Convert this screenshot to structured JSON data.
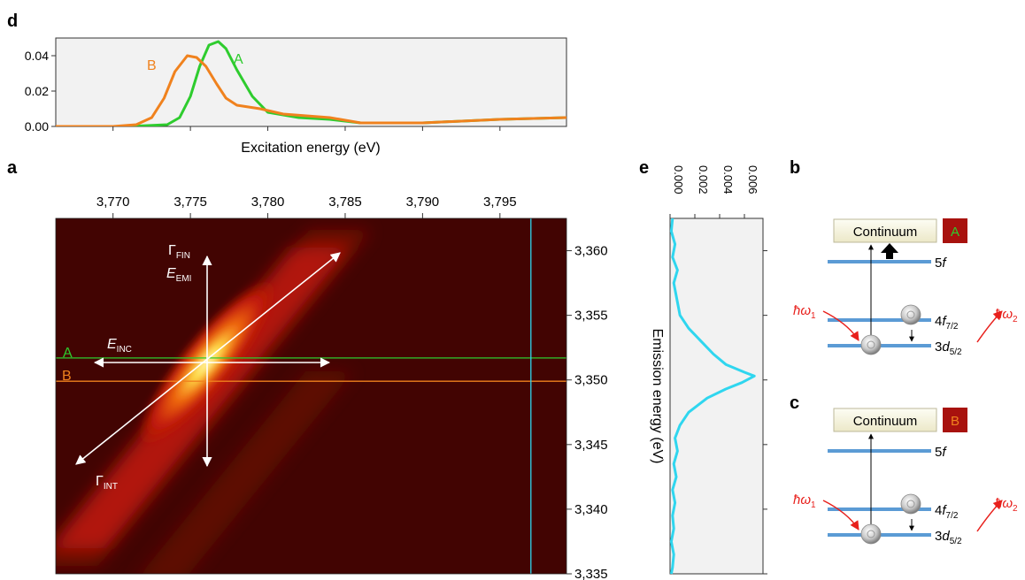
{
  "panels": {
    "a": "a",
    "b": "b",
    "c": "c",
    "d": "d",
    "e": "e"
  },
  "colors": {
    "green": "#2ecc2e",
    "orange": "#f0821e",
    "cyan": "#2fd6ef",
    "red": "#e8201c",
    "level": "#5b9bd5",
    "badge": "#a8120e",
    "bg_plot": "#f2f2f2"
  },
  "chart_data": [
    {
      "id": "d",
      "type": "line",
      "title": "",
      "xlabel": "Excitation energy (eV)",
      "ylabel": "",
      "xlim": [
        3766.3,
        3799.3
      ],
      "ylim": [
        0,
        0.05
      ],
      "yticks": [
        "0.00",
        "0.02",
        "0.04"
      ],
      "ytick_values": [
        0,
        0.02,
        0.04
      ],
      "series": [
        {
          "name": "A",
          "color": "#2ecc2e",
          "x": [
            3766.3,
            3771,
            3773.5,
            3774.3,
            3775,
            3775.6,
            3776.2,
            3776.8,
            3777.3,
            3778,
            3779,
            3780,
            3782,
            3784,
            3786,
            3790,
            3795,
            3799.3
          ],
          "y": [
            0,
            0,
            0.001,
            0.005,
            0.017,
            0.034,
            0.046,
            0.048,
            0.044,
            0.032,
            0.017,
            0.008,
            0.005,
            0.004,
            0.002,
            0.002,
            0.004,
            0.005
          ]
        },
        {
          "name": "B",
          "color": "#f0821e",
          "x": [
            3766.3,
            3770,
            3771.5,
            3772.5,
            3773.3,
            3774,
            3774.8,
            3775.4,
            3776,
            3776.7,
            3777.3,
            3778,
            3779.5,
            3781,
            3784,
            3786,
            3790,
            3795,
            3799.3
          ],
          "y": [
            0,
            0,
            0.001,
            0.005,
            0.016,
            0.031,
            0.04,
            0.039,
            0.034,
            0.024,
            0.016,
            0.012,
            0.01,
            0.007,
            0.005,
            0.002,
            0.002,
            0.004,
            0.005
          ]
        }
      ]
    },
    {
      "id": "a",
      "type": "heatmap",
      "xlabel": "",
      "ylabel": "Emission energy (eV)",
      "xlim": [
        3766.3,
        3799.3
      ],
      "ylim": [
        3335,
        3362.5
      ],
      "xticks": [
        "3,770",
        "3,775",
        "3,780",
        "3,785",
        "3,790",
        "3,795"
      ],
      "xtick_values": [
        3770,
        3775,
        3780,
        3785,
        3790,
        3795
      ],
      "yticks": [
        "3,360",
        "3,355",
        "3,350",
        "3,345",
        "3,340",
        "3,335"
      ],
      "ytick_values": [
        3360,
        3355,
        3350,
        3345,
        3340,
        3335
      ],
      "lines": [
        {
          "label": "A",
          "axis": "y",
          "value": 3351.7,
          "color": "#2ecc2e"
        },
        {
          "label": "B",
          "axis": "y",
          "value": 3349.9,
          "color": "#f0821e"
        },
        {
          "label": "",
          "axis": "x",
          "value": 3797,
          "color": "#2fd6ef"
        }
      ],
      "annotations": {
        "gamma_fin": "Γ",
        "gamma_fin_sub": "FIN",
        "e_emi": "E",
        "e_emi_sub": "EMI",
        "e_inc": "E",
        "e_inc_sub": "INC",
        "gamma_int": "Γ",
        "gamma_int_sub": "INT"
      }
    },
    {
      "id": "e",
      "type": "line",
      "xlabel": "",
      "ylabel": "Emission energy (eV)",
      "xlim": [
        0,
        0.0075
      ],
      "ylim": [
        3335,
        3362.5
      ],
      "xticks": [
        "0.000",
        "0.002",
        "0.004",
        "0.006"
      ],
      "xtick_values": [
        0,
        0.002,
        0.004,
        0.006
      ],
      "series": [
        {
          "name": "",
          "color": "#2fd6ef",
          "x": [
            0.0002,
            0.0001,
            0.0004,
            0.0002,
            0.0006,
            0.0003,
            0.0005,
            0.0008,
            0.0015,
            0.0025,
            0.0035,
            0.0045,
            0.006,
            0.0068,
            0.0058,
            0.0045,
            0.003,
            0.0015,
            0.0008,
            0.0004,
            0.0006,
            0.0003,
            0.0005,
            0.0002,
            0.0004,
            0.0002,
            0.0003,
            0.0001,
            0.0003,
            0.0002,
            0.0001
          ],
          "y": [
            3362.5,
            3361.5,
            3360.5,
            3359.5,
            3358.5,
            3357.5,
            3356.5,
            3355,
            3354,
            3353,
            3352,
            3351.2,
            3350.6,
            3350.3,
            3349.8,
            3349.3,
            3348.6,
            3347.5,
            3346.5,
            3345.5,
            3344.5,
            3343.5,
            3342.5,
            3341.5,
            3340.5,
            3339.5,
            3338.5,
            3337.5,
            3336.5,
            3335.5,
            3335
          ]
        }
      ]
    }
  ],
  "level_diagrams": [
    {
      "id": "b",
      "continuum": "Continuum",
      "badge": "A",
      "badge_color": "#2ecc2e",
      "level_5f": "5",
      "level_5f_it": "f",
      "level_4f": "4",
      "level_4f_it": "f",
      "level_4f_sub": "7/2",
      "level_3d": "3",
      "level_3d_it": "d",
      "level_3d_sub": "5/2",
      "photon_in": "ħω",
      "photon_in_sub": "1",
      "photon_out": "ħω",
      "photon_out_sub": "2"
    },
    {
      "id": "c",
      "continuum": "Continuum",
      "badge": "B",
      "badge_color": "#f0821e",
      "level_5f": "5",
      "level_5f_it": "f",
      "level_4f": "4",
      "level_4f_it": "f",
      "level_4f_sub": "7/2",
      "level_3d": "3",
      "level_3d_it": "d",
      "level_3d_sub": "5/2",
      "photon_in": "ħω",
      "photon_in_sub": "1",
      "photon_out": "ħω",
      "photon_out_sub": "2"
    }
  ]
}
